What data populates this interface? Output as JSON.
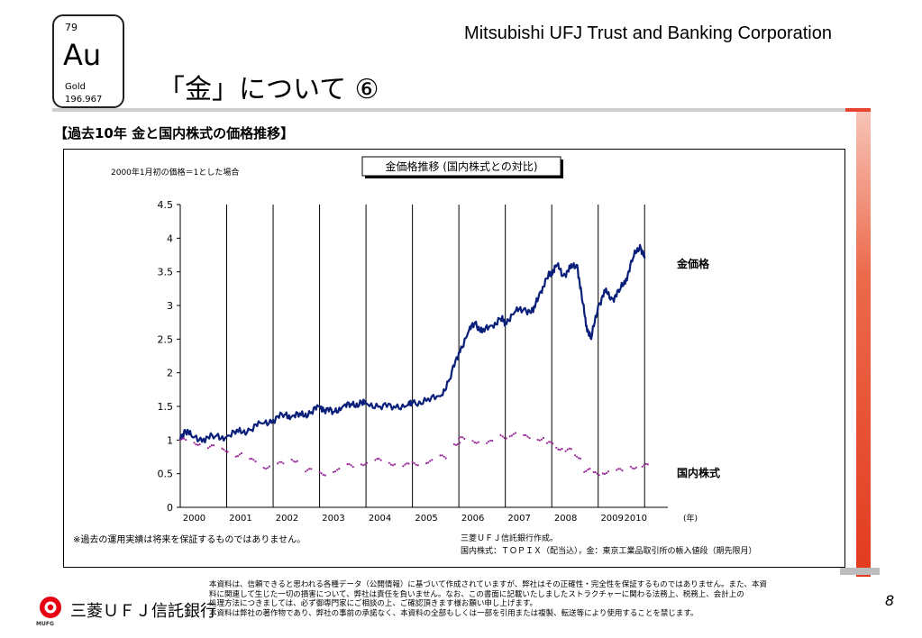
{
  "header": {
    "element_number": "79",
    "element_symbol": "Au",
    "element_name": "Gold",
    "element_mass": "196.967",
    "company": "Mitsubishi UFJ Trust and Banking Corporation",
    "title": "「金」について ⑥"
  },
  "section_title": "【過去10年 金と国内株式の価格推移】",
  "chart_data": {
    "type": "line",
    "title": "金価格推移 (国内株式との対比)",
    "subtitle": "2000年1月初の価格＝1とした場合",
    "x_tick_labels": [
      "2000",
      "2001",
      "2002",
      "2003",
      "2004",
      "2005",
      "2006",
      "2007",
      "2008",
      "2009",
      "2010"
    ],
    "x_unit": "(年)",
    "ylim": [
      0,
      4.5
    ],
    "y_ticks": [
      0,
      0.5,
      1,
      1.5,
      2,
      2.5,
      3,
      3.5,
      4,
      4.5
    ],
    "y_tick_labels": [
      "0",
      "0.5",
      "1",
      "1.5",
      "2",
      "2.5",
      "3",
      "3.5",
      "4",
      "4.5"
    ],
    "grid": "vertical year lines",
    "series": [
      {
        "name": "金価格",
        "color": "#0a1f7a",
        "x": [
          2000.0,
          2000.1,
          2000.25,
          2000.5,
          2000.75,
          2001.0,
          2001.25,
          2001.5,
          2001.75,
          2002.0,
          2002.25,
          2002.4,
          2002.6,
          2002.8,
          2003.0,
          2003.1,
          2003.3,
          2003.5,
          2003.7,
          2003.9,
          2004.0,
          2004.3,
          2004.6,
          2004.9,
          2005.0,
          2005.3,
          2005.6,
          2005.8,
          2006.0,
          2006.2,
          2006.35,
          2006.5,
          2006.7,
          2006.9,
          2007.0,
          2007.2,
          2007.4,
          2007.6,
          2007.75,
          2007.9,
          2008.0,
          2008.1,
          2008.25,
          2008.4,
          2008.55,
          2008.65,
          2008.75,
          2008.85,
          2009.0,
          2009.15,
          2009.3,
          2009.45,
          2009.6,
          2009.75,
          2009.9,
          2010.0
        ],
        "values": [
          1.0,
          1.15,
          1.05,
          1.02,
          1.05,
          1.05,
          1.12,
          1.15,
          1.25,
          1.3,
          1.38,
          1.35,
          1.37,
          1.4,
          1.5,
          1.45,
          1.42,
          1.5,
          1.52,
          1.55,
          1.55,
          1.5,
          1.5,
          1.52,
          1.55,
          1.58,
          1.65,
          1.9,
          2.3,
          2.6,
          2.75,
          2.6,
          2.7,
          2.8,
          2.75,
          2.9,
          2.95,
          2.9,
          3.2,
          3.4,
          3.5,
          3.6,
          3.45,
          3.55,
          3.6,
          3.1,
          2.7,
          2.5,
          3.0,
          3.2,
          3.1,
          3.2,
          3.4,
          3.7,
          3.9,
          3.7
        ]
      },
      {
        "name": "国内株式",
        "color": "#9a2b9a",
        "x": [
          2000.0,
          2000.3,
          2000.6,
          2000.9,
          2001.2,
          2001.5,
          2001.8,
          2002.1,
          2002.4,
          2002.7,
          2003.0,
          2003.3,
          2003.6,
          2003.9,
          2004.2,
          2004.5,
          2004.8,
          2005.0,
          2005.3,
          2005.6,
          2005.9,
          2006.0,
          2006.3,
          2006.6,
          2006.9,
          2007.1,
          2007.4,
          2007.7,
          2007.9,
          2008.1,
          2008.3,
          2008.5,
          2008.7,
          2008.9,
          2009.1,
          2009.4,
          2009.7,
          2009.95
        ],
        "values": [
          1.0,
          0.95,
          0.9,
          0.85,
          0.78,
          0.7,
          0.6,
          0.65,
          0.7,
          0.55,
          0.5,
          0.55,
          0.62,
          0.65,
          0.7,
          0.65,
          0.63,
          0.65,
          0.68,
          0.75,
          0.95,
          1.02,
          0.98,
          0.97,
          1.05,
          1.08,
          1.05,
          1.02,
          0.95,
          0.88,
          0.85,
          0.75,
          0.55,
          0.5,
          0.52,
          0.55,
          0.6,
          0.62
        ]
      }
    ],
    "end_labels": [
      "金価格",
      "国内株式"
    ]
  },
  "notes": {
    "disclaimer": "※過去の運用実績は将来を保証するものではありません。",
    "source_line1": "三菱ＵＦＪ信託銀行作成。",
    "source_line2": "国内株式：ＴＯＰＩＸ（配当込），金：東京工業品取引所の帳入値段（期先限月）"
  },
  "footer": {
    "line1": "本資料は、信頼できると思われる各種データ（公開情報）に基づいて作成されていますが、弊社はその正確性・完全性を保証するものではありません。また、本資",
    "line2": "料に関連して生じた一切の損害について、弊社は責任を負いません。なお、この書面に記載いたしましたストラクチャーに関わる法務上、税務上、会計上の",
    "line3": "処理方法につきましては、必ず御専門家にご相談の上、ご確認頂きます様お願い申し上げます。",
    "line4": "本資料は弊社の著作物であり、弊社の事前の承諾なく、本資料の全部もしくは一部を引用または複製、転送等により使用することを禁じます。",
    "logo_sub": "MUFG",
    "bank_name": "三菱ＵＦＪ信託銀行",
    "page_number": "8"
  },
  "colors": {
    "accent_red": "#e23b1e",
    "gold_line": "#0a1f7a",
    "stock_dots": "#9a2b9a"
  }
}
